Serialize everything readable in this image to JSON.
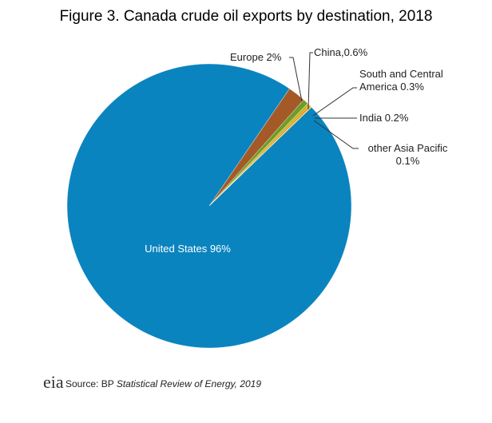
{
  "chart_data": {
    "type": "pie",
    "title": "Figure 3. Canada crude oil exports by destination, 2018",
    "values": [
      96,
      2,
      0.6,
      0.3,
      0.2,
      0.1
    ],
    "value_labels": [
      "United States 96%",
      "Europe 2%",
      "China,0.6%",
      "South and Central America 0.3%",
      "India 0.2%",
      "other Asia Pacific 0.1%"
    ],
    "colors": [
      "#0a84bf",
      "#a35a27",
      "#6f9b2c",
      "#c9b51a",
      "#dc8a2a",
      "#f2c40c"
    ],
    "logo": "eia",
    "source_prefix": "Source: BP",
    "source_italic": "Statistical Review of Energy, 2019"
  }
}
